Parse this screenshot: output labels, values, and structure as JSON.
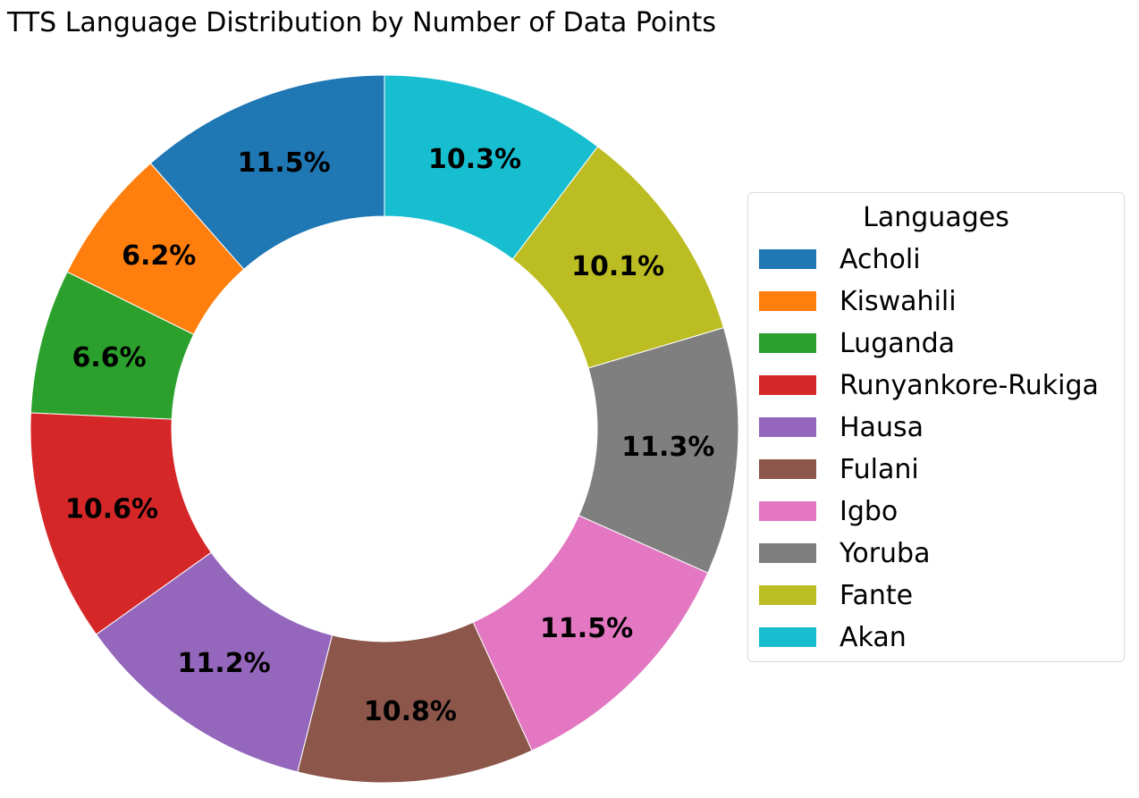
{
  "chart_data": {
    "type": "pie",
    "title": "TTS Language Distribution by Number of Data Points",
    "legend_title": "Languages",
    "legend_position": "right",
    "donut": true,
    "start": "top, counter-clockwise",
    "categories": [
      "Acholi",
      "Kiswahili",
      "Luganda",
      "Runyankore-Rukiga",
      "Hausa",
      "Fulani",
      "Igbo",
      "Yoruba",
      "Fante",
      "Akan"
    ],
    "values": [
      11.5,
      6.2,
      6.6,
      10.6,
      11.2,
      10.8,
      11.5,
      11.3,
      10.1,
      10.3
    ],
    "labels": [
      "11.5%",
      "6.2%",
      "6.6%",
      "10.6%",
      "11.2%",
      "10.8%",
      "11.5%",
      "11.3%",
      "10.1%",
      "10.3%"
    ],
    "colors": [
      "#1f77b4",
      "#ff7f0e",
      "#2ca02c",
      "#d62728",
      "#9467bd",
      "#8c564b",
      "#e377c2",
      "#7f7f7f",
      "#bcbd22",
      "#17becf"
    ]
  }
}
